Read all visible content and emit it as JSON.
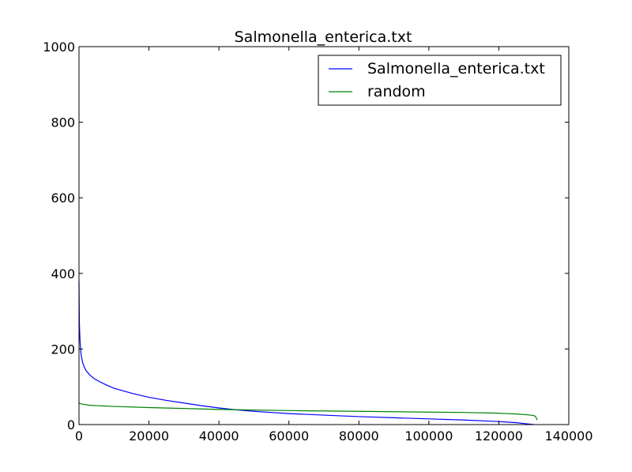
{
  "chart_data": {
    "type": "line",
    "title": "Salmonella_enterica.txt",
    "xlabel": "",
    "ylabel": "",
    "xlim": [
      0,
      140000
    ],
    "ylim": [
      0,
      1000
    ],
    "xticks": [
      0,
      20000,
      40000,
      60000,
      80000,
      100000,
      120000,
      140000
    ],
    "xtick_labels": [
      "0",
      "20000",
      "40000",
      "60000",
      "80000",
      "100000",
      "120000",
      "140000"
    ],
    "yticks": [
      0,
      200,
      400,
      600,
      800,
      1000
    ],
    "ytick_labels": [
      "0",
      "200",
      "400",
      "600",
      "800",
      "1000"
    ],
    "grid": false,
    "legend_position": "top-right",
    "series": [
      {
        "name": "Salmonella_enterica.txt",
        "color": "#0000ff",
        "x": [
          0,
          100,
          300,
          600,
          1000,
          1500,
          2000,
          3000,
          4000,
          5000,
          6000,
          8000,
          10000,
          15000,
          20000,
          25000,
          30000,
          35000,
          40000,
          45000,
          50000,
          55000,
          60000,
          70000,
          80000,
          90000,
          100000,
          110000,
          120000,
          125000,
          128000,
          130000
        ],
        "y": [
          380,
          270,
          220,
          185,
          165,
          152,
          143,
          132,
          124,
          118,
          113,
          104,
          96,
          83,
          72,
          64,
          57,
          50,
          44,
          39,
          35,
          32,
          29,
          25,
          21,
          18,
          15,
          12,
          8,
          5,
          2,
          0
        ]
      },
      {
        "name": "random",
        "color": "#008000",
        "x": [
          0,
          500,
          1000,
          3000,
          10000,
          20000,
          40000,
          60000,
          80000,
          100000,
          110000,
          120000,
          125000,
          128000,
          130000,
          130500,
          131000
        ],
        "y": [
          57,
          55,
          54,
          51,
          48,
          45,
          40,
          37,
          35,
          33,
          32,
          30,
          28,
          26,
          24,
          21,
          12
        ]
      }
    ]
  }
}
